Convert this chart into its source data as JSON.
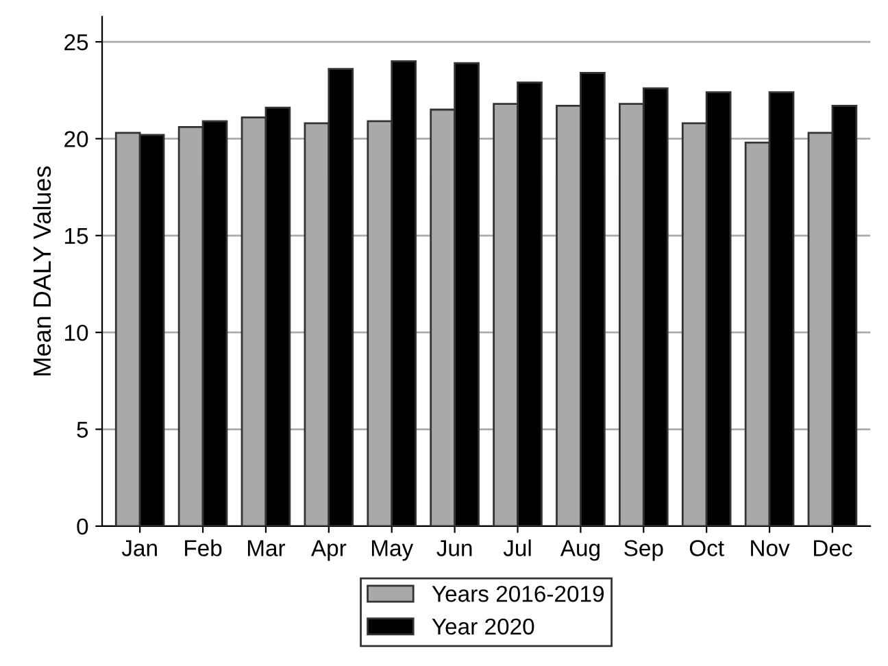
{
  "chart_data": {
    "type": "bar",
    "ylabel": "Mean DALY Values",
    "categories": [
      "Jan",
      "Feb",
      "Mar",
      "Apr",
      "May",
      "Jun",
      "Jul",
      "Aug",
      "Sep",
      "Oct",
      "Nov",
      "Dec"
    ],
    "series": [
      {
        "name": "Years 2016-2019",
        "color": "#a9a9a9",
        "values": [
          20.3,
          20.6,
          21.1,
          20.8,
          20.9,
          21.5,
          21.8,
          21.7,
          21.8,
          20.8,
          19.8,
          20.3
        ]
      },
      {
        "name": "Year 2020",
        "color": "#000000",
        "values": [
          20.2,
          20.9,
          21.6,
          23.6,
          24.0,
          23.9,
          22.9,
          23.4,
          22.6,
          22.4,
          22.4,
          21.7
        ]
      }
    ],
    "ylim": [
      0,
      26.3
    ],
    "yticks": [
      0,
      5,
      10,
      15,
      20,
      25
    ],
    "grid": "y",
    "legend": "bottom"
  }
}
